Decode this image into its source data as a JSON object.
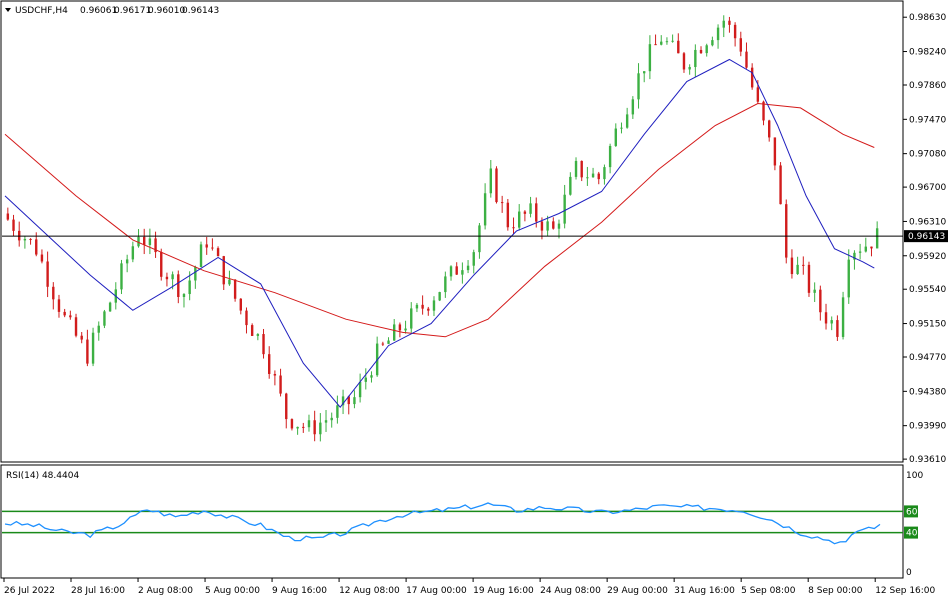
{
  "header": {
    "symbol": "USDCHF,H4",
    "ohlc": [
      "0.96061",
      "0.96171",
      "0.96010",
      "0.96143"
    ]
  },
  "rsi": {
    "label": "RSI(14) 48.4404",
    "levels": [
      60,
      40
    ],
    "scale_labels": [
      "100",
      "0"
    ],
    "level_labels": [
      "60",
      "40"
    ]
  },
  "colors": {
    "bull": "#3cb043",
    "bear": "#d11c1c",
    "ma_fast": "#1f1fbf",
    "ma_slow": "#d41a1a",
    "rsi_line": "#1e90ff",
    "rsi_level": "#1a8a1a",
    "price_line": "#000000",
    "price_tag_bg": "#000000",
    "price_tag_fg": "#ffffff"
  },
  "chart_data": {
    "type": "candlestick",
    "price_axis": {
      "ticks": [
        "0.98630",
        "0.98240",
        "0.97860",
        "0.97470",
        "0.97080",
        "0.96700",
        "0.96310",
        "0.95920",
        "0.95540",
        "0.95150",
        "0.94770",
        "0.94380",
        "0.93990",
        "0.93610"
      ],
      "range": [
        0.936,
        0.9878
      ],
      "current_price": "0.96143"
    },
    "x_labels": [
      "26 Jul 2022",
      "28 Jul 16:00",
      "2 Aug 08:00",
      "5 Aug 00:00",
      "9 Aug 16:00",
      "12 Aug 08:00",
      "17 Aug 00:00",
      "19 Aug 16:00",
      "24 Aug 08:00",
      "29 Aug 00:00",
      "31 Aug 16:00",
      "5 Sep 08:00",
      "8 Sep 00:00",
      "12 Sep 16:00"
    ],
    "price_path": [
      [
        0,
        0.964
      ],
      [
        12,
        0.96
      ],
      [
        22,
        0.952
      ],
      [
        30,
        0.948
      ],
      [
        38,
        0.954
      ],
      [
        48,
        0.962
      ],
      [
        56,
        0.958
      ],
      [
        64,
        0.955
      ],
      [
        72,
        0.961
      ],
      [
        78,
        0.957
      ],
      [
        84,
        0.953
      ],
      [
        92,
        0.949
      ],
      [
        100,
        0.941
      ],
      [
        108,
        0.9395
      ],
      [
        116,
        0.941
      ],
      [
        124,
        0.943
      ],
      [
        132,
        0.948
      ],
      [
        140,
        0.951
      ],
      [
        150,
        0.954
      ],
      [
        158,
        0.957
      ],
      [
        166,
        0.96
      ],
      [
        172,
        0.968
      ],
      [
        178,
        0.963
      ],
      [
        186,
        0.964
      ],
      [
        194,
        0.962
      ],
      [
        202,
        0.969
      ],
      [
        210,
        0.968
      ],
      [
        218,
        0.975
      ],
      [
        226,
        0.981
      ],
      [
        232,
        0.984
      ],
      [
        240,
        0.981
      ],
      [
        248,
        0.984
      ],
      [
        254,
        0.986
      ],
      [
        260,
        0.983
      ],
      [
        266,
        0.976
      ],
      [
        272,
        0.97
      ],
      [
        276,
        0.959
      ],
      [
        282,
        0.957
      ],
      [
        288,
        0.953
      ],
      [
        294,
        0.951
      ],
      [
        298,
        0.96
      ],
      [
        304,
        0.9605
      ],
      [
        308,
        0.9614
      ]
    ],
    "ma_fast": [
      [
        0,
        0.966
      ],
      [
        15,
        0.9615
      ],
      [
        30,
        0.957
      ],
      [
        45,
        0.953
      ],
      [
        58,
        0.9555
      ],
      [
        75,
        0.959
      ],
      [
        90,
        0.956
      ],
      [
        105,
        0.947
      ],
      [
        118,
        0.942
      ],
      [
        135,
        0.949
      ],
      [
        150,
        0.9515
      ],
      [
        165,
        0.957
      ],
      [
        180,
        0.962
      ],
      [
        195,
        0.964
      ],
      [
        210,
        0.9665
      ],
      [
        225,
        0.973
      ],
      [
        240,
        0.979
      ],
      [
        255,
        0.9815
      ],
      [
        263,
        0.98
      ],
      [
        272,
        0.974
      ],
      [
        282,
        0.966
      ],
      [
        292,
        0.96
      ],
      [
        302,
        0.9585
      ],
      [
        306,
        0.9578
      ]
    ],
    "ma_slow": [
      [
        0,
        0.973
      ],
      [
        25,
        0.966
      ],
      [
        45,
        0.961
      ],
      [
        70,
        0.9575
      ],
      [
        95,
        0.955
      ],
      [
        120,
        0.952
      ],
      [
        140,
        0.9505
      ],
      [
        155,
        0.95
      ],
      [
        170,
        0.952
      ],
      [
        190,
        0.958
      ],
      [
        210,
        0.963
      ],
      [
        230,
        0.969
      ],
      [
        250,
        0.974
      ],
      [
        265,
        0.9765
      ],
      [
        280,
        0.976
      ],
      [
        295,
        0.973
      ],
      [
        306,
        0.9715
      ]
    ],
    "rsi_path": [
      [
        0,
        49
      ],
      [
        10,
        47
      ],
      [
        20,
        41
      ],
      [
        30,
        38
      ],
      [
        40,
        47
      ],
      [
        50,
        62
      ],
      [
        60,
        55
      ],
      [
        70,
        61
      ],
      [
        80,
        54
      ],
      [
        90,
        47
      ],
      [
        100,
        35
      ],
      [
        110,
        34
      ],
      [
        120,
        40
      ],
      [
        130,
        50
      ],
      [
        140,
        57
      ],
      [
        150,
        60
      ],
      [
        160,
        63
      ],
      [
        170,
        67
      ],
      [
        180,
        61
      ],
      [
        190,
        64
      ],
      [
        200,
        62
      ],
      [
        210,
        59
      ],
      [
        220,
        61
      ],
      [
        230,
        65
      ],
      [
        240,
        64
      ],
      [
        250,
        63
      ],
      [
        260,
        61
      ],
      [
        270,
        52
      ],
      [
        280,
        40
      ],
      [
        290,
        33
      ],
      [
        296,
        30
      ],
      [
        300,
        42
      ],
      [
        306,
        46
      ]
    ]
  }
}
